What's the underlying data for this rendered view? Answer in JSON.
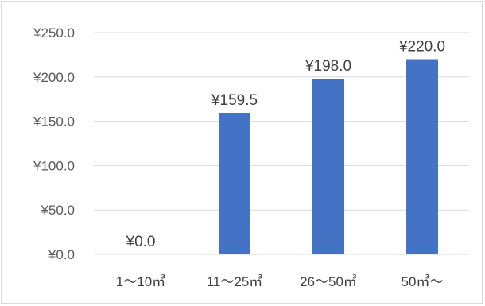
{
  "chart_data": {
    "type": "bar",
    "categories": [
      "1～10㎥",
      "11～25㎥",
      "26～50㎥",
      "50㎥～"
    ],
    "values": [
      0,
      159.5,
      198,
      220
    ],
    "data_labels": [
      "¥0.0",
      "¥159.5",
      "¥198.0",
      "¥220.0"
    ],
    "y_ticks": [
      0,
      50,
      100,
      150,
      200,
      250
    ],
    "y_tick_labels": [
      "¥0.0",
      "¥50.0",
      "¥100.0",
      "¥150.0",
      "¥200.0",
      "¥250.0"
    ],
    "ylim": [
      0,
      250
    ],
    "title": "",
    "xlabel": "",
    "ylabel": "",
    "grid": true,
    "legend": "none",
    "bar_color": "#4472c4",
    "grid_color": "#d9d9d9"
  }
}
